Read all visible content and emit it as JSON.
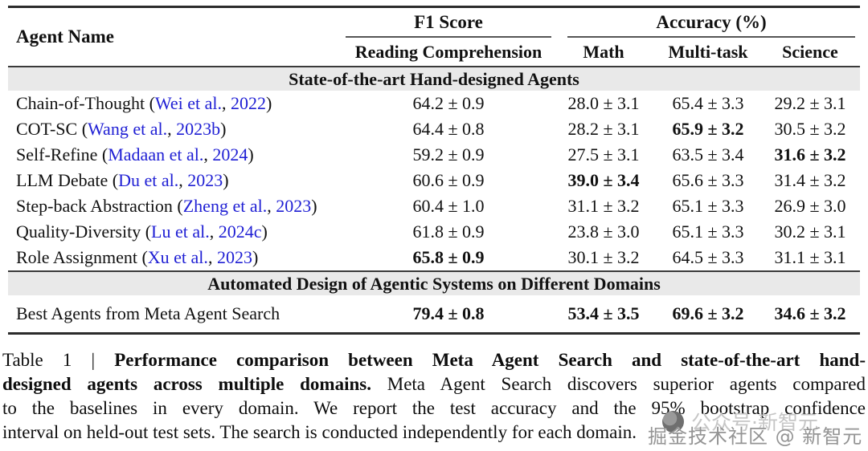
{
  "colors": {
    "link_blue": "#1f1fd4",
    "band_gray": "#e9e9e9",
    "rule": "#2b2b2b"
  },
  "table": {
    "header": {
      "agent_name": "Agent Name",
      "f1_group": "F1 Score",
      "f1_sub": "Reading Comprehension",
      "accuracy_group": "Accuracy (%)",
      "accuracy_subs": [
        "Math",
        "Multi-task",
        "Science"
      ]
    },
    "sections": [
      {
        "title": "State-of-the-art Hand-designed Agents"
      },
      {
        "title": "Automated Design of Agentic Systems on Different Domains"
      }
    ],
    "rows": [
      {
        "name_pre": "Chain-of-Thought (",
        "cite_author": "Wei et al.",
        "cite_year": "2022",
        "name_post": ")",
        "cells": [
          {
            "text": "64.2 ± 0.9",
            "bold": false
          },
          {
            "text": "28.0 ± 3.1",
            "bold": false
          },
          {
            "text": "65.4 ± 3.3",
            "bold": false
          },
          {
            "text": "29.2 ± 3.1",
            "bold": false
          }
        ]
      },
      {
        "name_pre": "COT-SC (",
        "cite_author": "Wang et al.",
        "cite_year": "2023b",
        "name_post": ")",
        "cells": [
          {
            "text": "64.4 ± 0.8",
            "bold": false
          },
          {
            "text": "28.2 ± 3.1",
            "bold": false
          },
          {
            "text": "65.9 ± 3.2",
            "bold": true
          },
          {
            "text": "30.5 ± 3.2",
            "bold": false
          }
        ]
      },
      {
        "name_pre": "Self-Refine (",
        "cite_author": "Madaan et al.",
        "cite_year": "2024",
        "name_post": ")",
        "cells": [
          {
            "text": "59.2 ± 0.9",
            "bold": false
          },
          {
            "text": "27.5 ± 3.1",
            "bold": false
          },
          {
            "text": "63.5 ± 3.4",
            "bold": false
          },
          {
            "text": "31.6 ± 3.2",
            "bold": true
          }
        ]
      },
      {
        "name_pre": "LLM Debate (",
        "cite_author": "Du et al.",
        "cite_year": "2023",
        "name_post": ")",
        "cells": [
          {
            "text": "60.6 ± 0.9",
            "bold": false
          },
          {
            "text": "39.0 ± 3.4",
            "bold": true
          },
          {
            "text": "65.6 ± 3.3",
            "bold": false
          },
          {
            "text": "31.4 ± 3.2",
            "bold": false
          }
        ]
      },
      {
        "name_pre": "Step-back Abstraction (",
        "cite_author": "Zheng et al.",
        "cite_year": "2023",
        "name_post": ")",
        "cells": [
          {
            "text": "60.4 ± 1.0",
            "bold": false
          },
          {
            "text": "31.1 ± 3.2",
            "bold": false
          },
          {
            "text": "65.1 ± 3.3",
            "bold": false
          },
          {
            "text": "26.9 ± 3.0",
            "bold": false
          }
        ]
      },
      {
        "name_pre": "Quality-Diversity (",
        "cite_author": "Lu et al.",
        "cite_year": "2024c",
        "name_post": ")",
        "cells": [
          {
            "text": "61.8 ± 0.9",
            "bold": false
          },
          {
            "text": "23.8 ± 3.0",
            "bold": false
          },
          {
            "text": "65.1 ± 3.3",
            "bold": false
          },
          {
            "text": "30.2 ± 3.1",
            "bold": false
          }
        ]
      },
      {
        "name_pre": "Role Assignment (",
        "cite_author": "Xu et al.",
        "cite_year": "2023",
        "name_post": ")",
        "cells": [
          {
            "text": "65.8 ± 0.9",
            "bold": true
          },
          {
            "text": "30.1 ± 3.2",
            "bold": false
          },
          {
            "text": "64.5 ± 3.3",
            "bold": false
          },
          {
            "text": "31.1 ± 3.1",
            "bold": false
          }
        ]
      }
    ],
    "final_row": {
      "name": "Best Agents from Meta Agent Search",
      "cells": [
        {
          "text": "79.4 ± 0.8",
          "bold": true
        },
        {
          "text": "53.4 ± 3.5",
          "bold": true
        },
        {
          "text": "69.6 ± 3.2",
          "bold": true
        },
        {
          "text": "34.6 ± 3.2",
          "bold": true
        }
      ]
    }
  },
  "caption": {
    "lines": [
      [
        {
          "text": "Table 1 | ",
          "bold": false
        },
        {
          "text": "Performance comparison between Meta Agent Search and state-of-the-art hand-",
          "bold": true
        }
      ],
      [
        {
          "text": "designed agents across multiple domains.",
          "bold": true
        },
        {
          "text": " Meta Agent Search discovers superior agents compared",
          "bold": false
        }
      ],
      [
        {
          "text": "to the baselines in every domain. We report the test accuracy and the 95% bootstrap confidence",
          "bold": false
        }
      ],
      [
        {
          "text": "interval on held-out test sets. The search is conducted independently for each domain.",
          "bold": false
        }
      ]
    ]
  },
  "watermarks": {
    "light_text": "公众号·新智元",
    "dark_text": "掘金技术社区 @ 新智元"
  }
}
